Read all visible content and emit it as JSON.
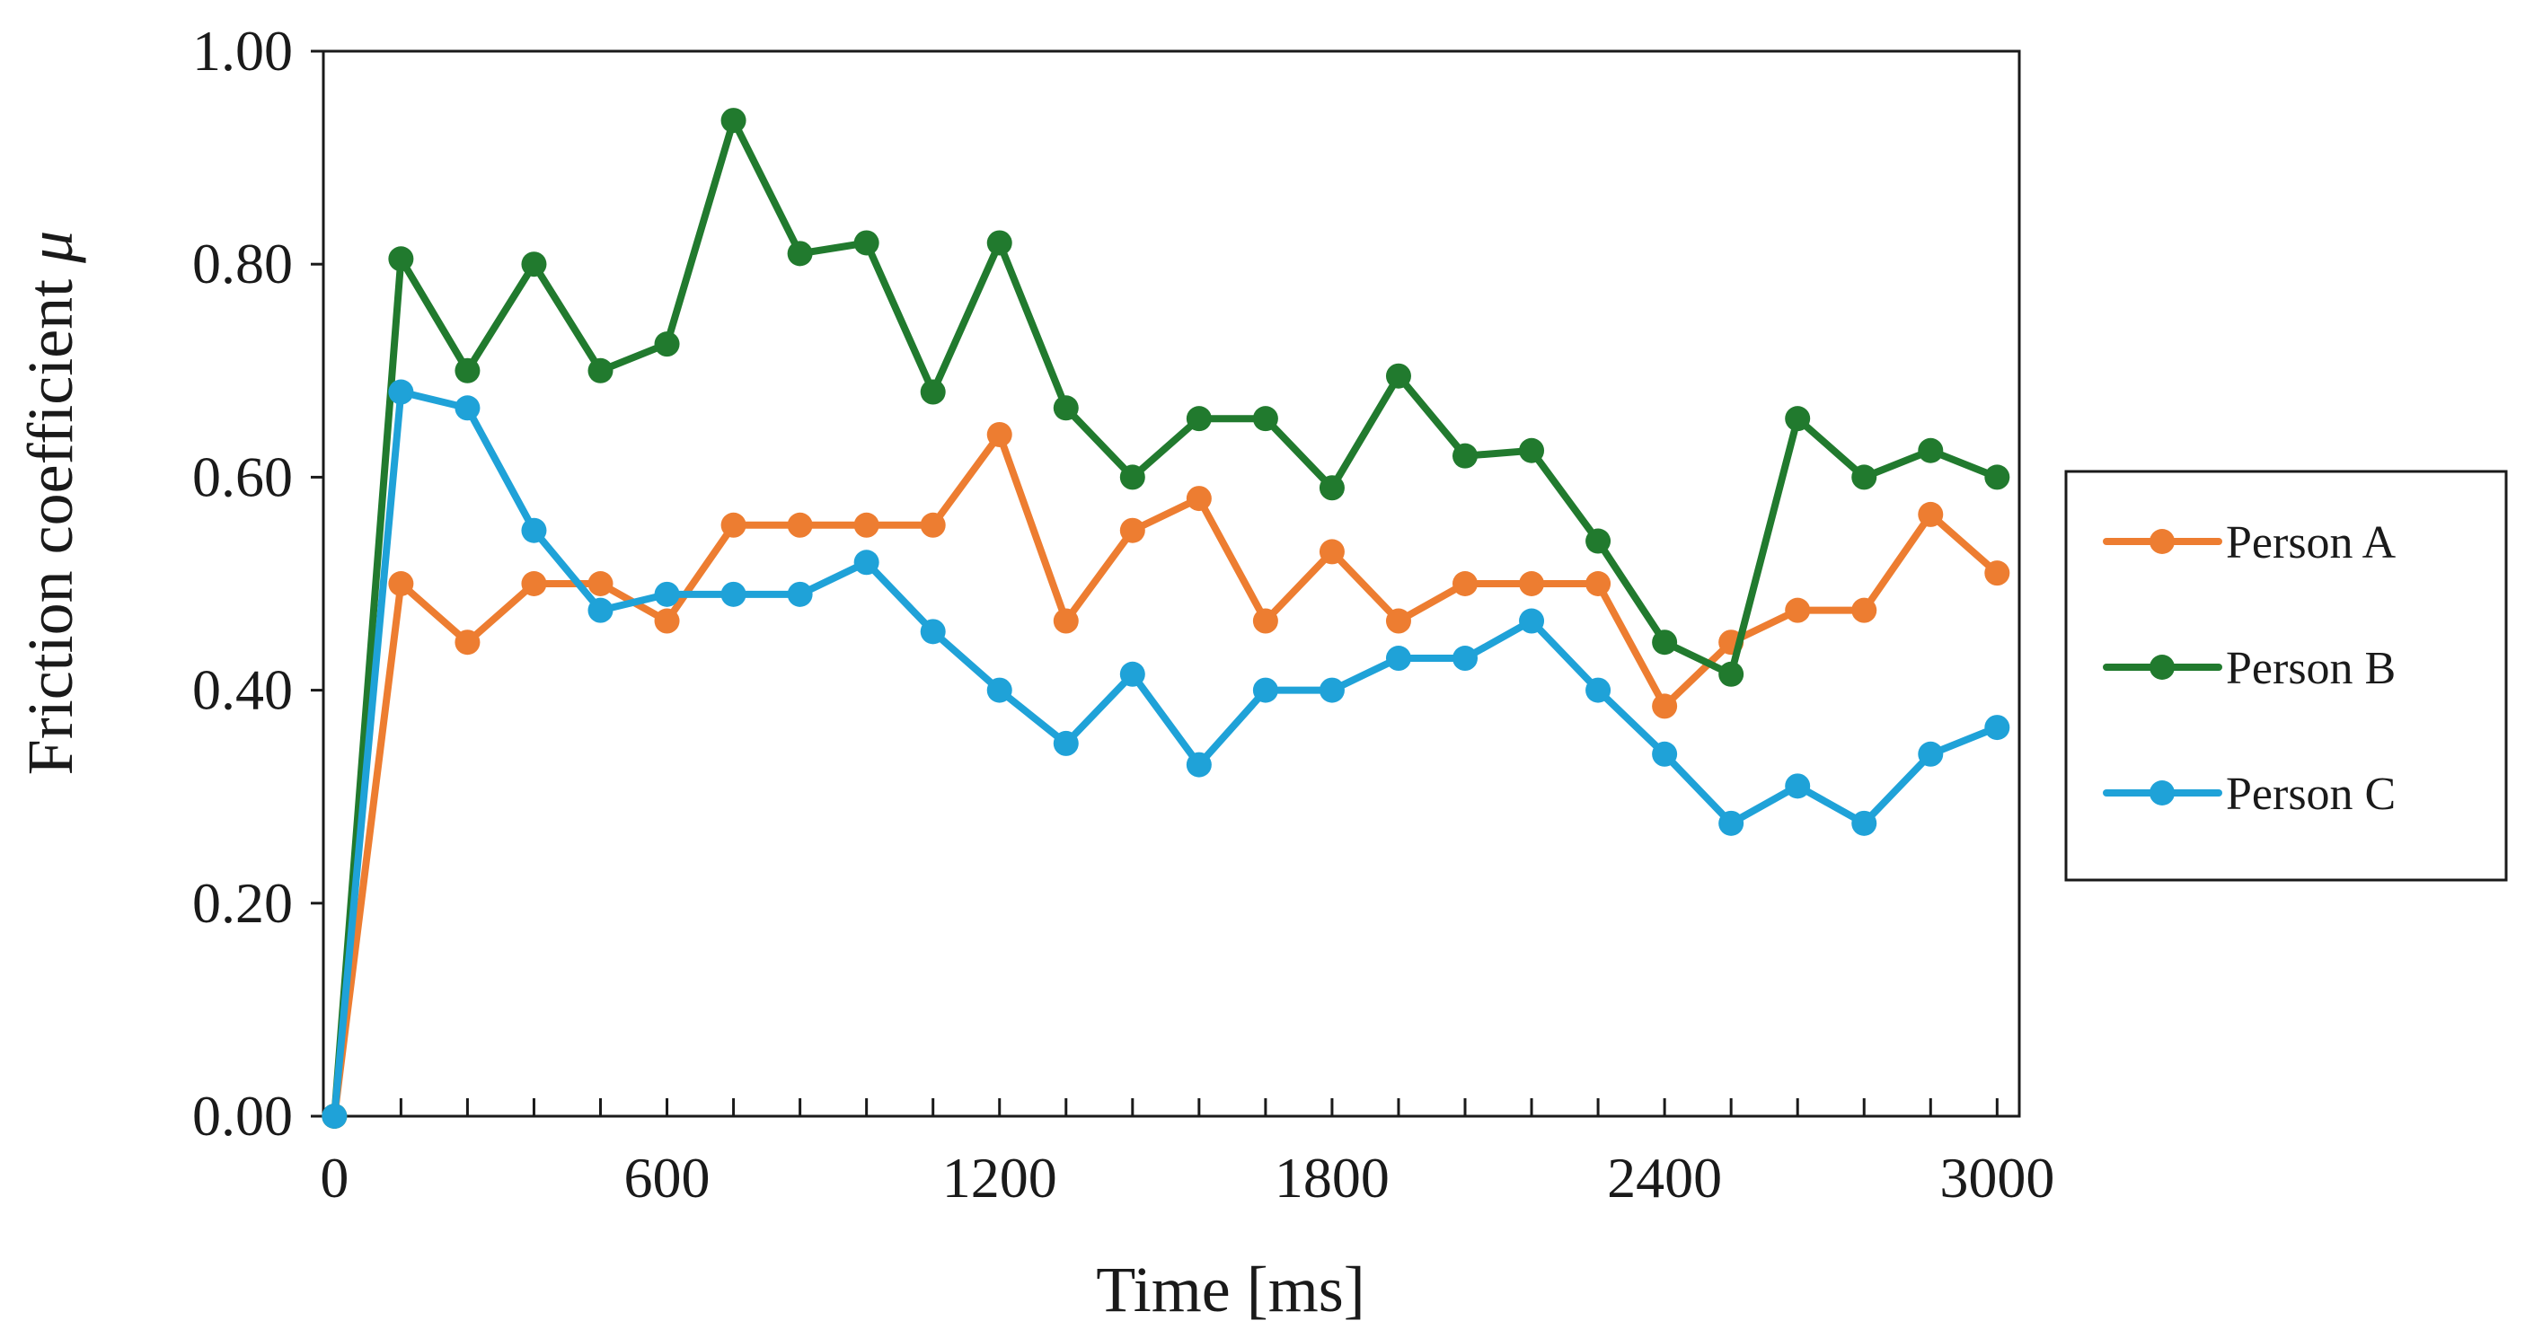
{
  "chart_data": {
    "type": "line",
    "title": "",
    "xlabel": "Time [ms]",
    "ylabel": "Friction coefficient",
    "ylabel_symbol": "μ",
    "xlim": [
      -20,
      3040
    ],
    "ylim": [
      0,
      1.0
    ],
    "x_ticks": [
      0,
      600,
      1200,
      1800,
      2400,
      3000
    ],
    "x_tick_labels": [
      "0",
      "600",
      "1200",
      "1800",
      "2400",
      "3000"
    ],
    "x_minor_step": 120,
    "y_ticks": [
      0,
      0.2,
      0.4,
      0.6,
      0.8,
      1.0
    ],
    "y_tick_labels": [
      "0.00",
      "0.20",
      "0.40",
      "0.60",
      "0.80",
      "1.00"
    ],
    "grid": false,
    "legend_position": "right",
    "x": [
      0,
      120,
      240,
      360,
      480,
      600,
      720,
      840,
      960,
      1080,
      1200,
      1320,
      1440,
      1560,
      1680,
      1800,
      1920,
      2040,
      2160,
      2280,
      2400,
      2520,
      2640,
      2760,
      2880,
      3000
    ],
    "series": [
      {
        "name": "Person A",
        "color": "#ed7d31",
        "values": [
          0,
          0.5,
          0.445,
          0.5,
          0.5,
          0.465,
          0.555,
          0.555,
          0.555,
          0.555,
          0.64,
          0.465,
          0.55,
          0.58,
          0.465,
          0.53,
          0.465,
          0.5,
          0.5,
          0.5,
          0.385,
          0.445,
          0.475,
          0.475,
          0.565,
          0.51
        ]
      },
      {
        "name": "Person B",
        "color": "#217a2e",
        "values": [
          0,
          0.805,
          0.7,
          0.8,
          0.7,
          0.725,
          0.935,
          0.81,
          0.82,
          0.68,
          0.82,
          0.665,
          0.6,
          0.655,
          0.655,
          0.59,
          0.695,
          0.62,
          0.625,
          0.54,
          0.445,
          0.415,
          0.655,
          0.6,
          0.625,
          0.6
        ]
      },
      {
        "name": "Person C",
        "color": "#1fa2d8",
        "values": [
          0,
          0.68,
          0.665,
          0.55,
          0.475,
          0.49,
          0.49,
          0.49,
          0.52,
          0.455,
          0.4,
          0.35,
          0.415,
          0.33,
          0.4,
          0.4,
          0.43,
          0.43,
          0.465,
          0.4,
          0.34,
          0.275,
          0.31,
          0.275,
          0.34,
          0.365
        ]
      }
    ]
  }
}
